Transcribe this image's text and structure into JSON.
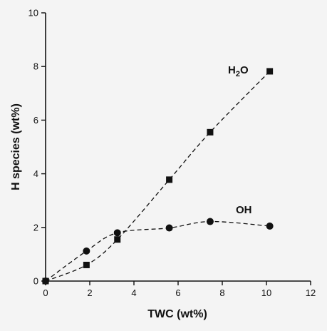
{
  "chart_data": {
    "type": "scatter",
    "title": "",
    "xlabel": "TWC (wt%)",
    "ylabel": "H species (wt%)",
    "xlim": [
      0,
      12
    ],
    "ylim": [
      0,
      10
    ],
    "xticks": [
      "0",
      "2",
      "4",
      "6",
      "8",
      "10",
      "12"
    ],
    "yticks": [
      "0",
      "2",
      "4",
      "6",
      "8",
      "10"
    ],
    "grid": false,
    "legend": "none; series labelled directly on plot",
    "series": [
      {
        "name": "H2O",
        "marker": "square",
        "line_style": "dashed fitted curve",
        "x": [
          0,
          1.85,
          3.25,
          5.6,
          7.45,
          10.15
        ],
        "y": [
          0,
          0.6,
          1.55,
          3.78,
          5.55,
          7.82
        ]
      },
      {
        "name": "OH",
        "marker": "circle",
        "line_style": "dashed fitted curve",
        "x": [
          0,
          1.85,
          3.25,
          5.6,
          7.45,
          10.15
        ],
        "y": [
          0,
          1.12,
          1.8,
          1.98,
          2.22,
          2.05
        ]
      }
    ],
    "annotations": {
      "h2o_base": "H",
      "h2o_sub": "2",
      "h2o_tail": "O",
      "oh": "OH"
    }
  }
}
